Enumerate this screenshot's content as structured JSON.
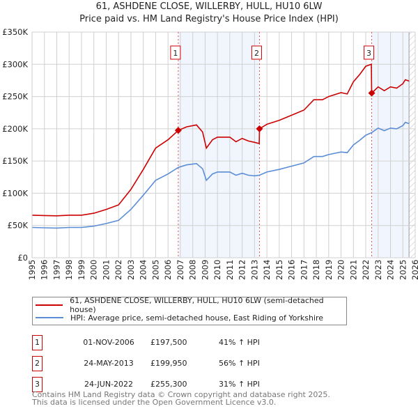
{
  "header": {
    "title": "61, ASHDENE CLOSE, WILLERBY, HULL, HU10 6LW",
    "subtitle": "Price paid vs. HM Land Registry's House Price Index (HPI)"
  },
  "chart_data": {
    "type": "line",
    "title": "61, ASHDENE CLOSE, WILLERBY, HULL, HU10 6LW",
    "xlim": [
      1995,
      2026
    ],
    "ylim": [
      0,
      350000
    ],
    "yticks": [
      {
        "v": 0,
        "label": "£0"
      },
      {
        "v": 50000,
        "label": "£50K"
      },
      {
        "v": 100000,
        "label": "£100K"
      },
      {
        "v": 150000,
        "label": "£150K"
      },
      {
        "v": 200000,
        "label": "£200K"
      },
      {
        "v": 250000,
        "label": "£250K"
      },
      {
        "v": 300000,
        "label": "£300K"
      },
      {
        "v": 350000,
        "label": "£350K"
      }
    ],
    "xticks": [
      "1995",
      "1996",
      "1997",
      "1998",
      "1999",
      "2000",
      "2001",
      "2002",
      "2003",
      "2004",
      "2005",
      "2006",
      "2007",
      "2008",
      "2009",
      "2010",
      "2011",
      "2012",
      "2013",
      "2014",
      "2015",
      "2016",
      "2017",
      "2018",
      "2019",
      "2020",
      "2021",
      "2022",
      "2023",
      "2024",
      "2025",
      "2026"
    ],
    "grid": true,
    "series": [
      {
        "name": "61, ASHDENE CLOSE, WILLERBY, HULL, HU10 6LW (semi-detached house)",
        "color": "#cc0000",
        "x": [
          1995,
          1996,
          1997,
          1998,
          1999,
          2000,
          2001,
          2002,
          2003,
          2004,
          2005,
          2006,
          2006.83,
          2007.5,
          2008.3,
          2008.8,
          2009.1,
          2009.6,
          2010,
          2011,
          2011.5,
          2012,
          2012.5,
          2013,
          2013.38,
          2013.4,
          2014,
          2015,
          2016,
          2017,
          2017.8,
          2018.5,
          2019,
          2020,
          2020.5,
          2021,
          2021.5,
          2022,
          2022.45,
          2022.48,
          2023,
          2023.5,
          2024,
          2024.5,
          2025,
          2025.2,
          2025.5
        ],
        "y": [
          66000,
          65500,
          65000,
          66000,
          66000,
          69000,
          75000,
          82000,
          106000,
          137000,
          170000,
          183000,
          197500,
          203000,
          206000,
          195000,
          170000,
          183000,
          187000,
          187000,
          180000,
          185000,
          181000,
          179000,
          177000,
          199950,
          207000,
          213000,
          221000,
          229000,
          245000,
          245000,
          250000,
          256000,
          254000,
          273000,
          284000,
          297000,
          300000,
          255300,
          265000,
          259000,
          265000,
          263000,
          270000,
          276000,
          274000
        ]
      },
      {
        "name": "HPI: Average price, semi-detached house, East Riding of Yorkshire",
        "color": "#5b8dd6",
        "x": [
          1995,
          1996,
          1997,
          1998,
          1999,
          2000,
          2001,
          2002,
          2003,
          2004,
          2005,
          2006,
          2006.83,
          2007.5,
          2008.3,
          2008.8,
          2009.1,
          2009.6,
          2010,
          2011,
          2011.5,
          2012,
          2012.5,
          2013,
          2013.4,
          2014,
          2015,
          2016,
          2017,
          2017.8,
          2018.5,
          2019,
          2020,
          2020.5,
          2021,
          2021.5,
          2022,
          2022.48,
          2023,
          2023.5,
          2024,
          2024.5,
          2025,
          2025.2,
          2025.5
        ],
        "y": [
          47000,
          46500,
          46000,
          47000,
          47000,
          49000,
          53000,
          58000,
          75000,
          97000,
          120000,
          130000,
          140000,
          144000,
          146000,
          138000,
          120000,
          130000,
          133000,
          133000,
          128000,
          131000,
          128000,
          127000,
          128000,
          133000,
          137000,
          142000,
          147000,
          157000,
          157000,
          160000,
          164000,
          163000,
          175000,
          182000,
          190000,
          194000,
          201000,
          197000,
          201000,
          200000,
          205000,
          210000,
          208000
        ]
      }
    ],
    "sales": [
      {
        "label": "1",
        "x": 2006.83,
        "y": 197500
      },
      {
        "label": "2",
        "x": 2013.4,
        "y": 199950
      },
      {
        "label": "3",
        "x": 2022.48,
        "y": 255300
      }
    ],
    "data_end": 2025.5,
    "legend_position": "bottom"
  },
  "legend": {
    "items": [
      {
        "label": "61, ASHDENE CLOSE, WILLERBY, HULL, HU10 6LW (semi-detached house)",
        "color": "#cc0000"
      },
      {
        "label": "HPI: Average price, semi-detached house, East Riding of Yorkshire",
        "color": "#5b8dd6"
      }
    ]
  },
  "table": [
    {
      "num": "1",
      "date": "01-NOV-2006",
      "price": "£197,500",
      "hpi": "41% ↑ HPI"
    },
    {
      "num": "2",
      "date": "24-MAY-2013",
      "price": "£199,950",
      "hpi": "56% ↑ HPI"
    },
    {
      "num": "3",
      "date": "24-JUN-2022",
      "price": "£255,300",
      "hpi": "31% ↑ HPI"
    }
  ],
  "footer": {
    "line1": "Contains HM Land Registry data © Crown copyright and database right 2025.",
    "line2": "This data is licensed under the Open Government Licence v3.0."
  }
}
